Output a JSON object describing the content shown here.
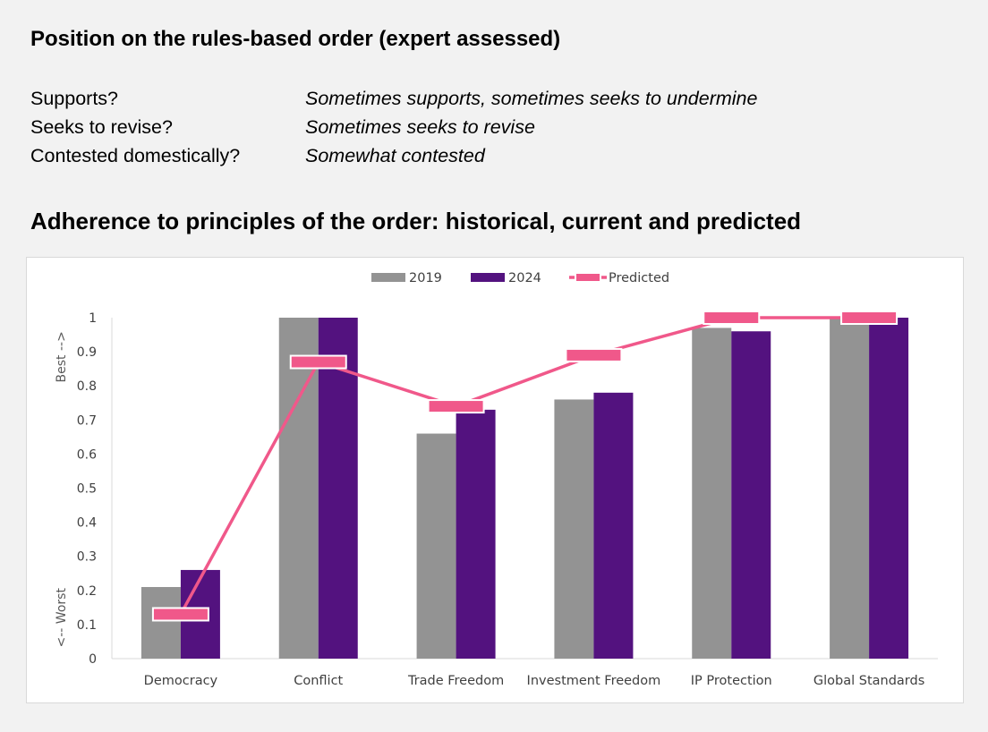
{
  "header": {
    "title": "Position on the rules-based order (expert assessed)",
    "rows": [
      {
        "label": "Supports?",
        "value": "Sometimes supports, sometimes seeks to undermine"
      },
      {
        "label": "Seeks to revise?",
        "value": "Sometimes seeks to revise"
      },
      {
        "label": "Contested domestically?",
        "value": "Somewhat contested"
      }
    ]
  },
  "chart_title": "Adherence to principles of the order: historical, current and predicted",
  "chart_data": {
    "type": "bar",
    "categories": [
      "Democracy",
      "Conflict",
      "Trade Freedom",
      "Investment Freedom",
      "IP Protection",
      "Global Standards"
    ],
    "series": [
      {
        "name": "2019",
        "type": "bar",
        "color": "#939393",
        "values": [
          0.21,
          1.0,
          0.66,
          0.76,
          0.97,
          1.0
        ]
      },
      {
        "name": "2024",
        "type": "bar",
        "color": "#53127f",
        "values": [
          0.26,
          1.0,
          0.73,
          0.78,
          0.96,
          1.0
        ]
      },
      {
        "name": "Predicted",
        "type": "line",
        "color": "#f0588a",
        "values": [
          0.13,
          0.87,
          0.74,
          0.89,
          1.0,
          1.0
        ]
      }
    ],
    "ylim": [
      0,
      1
    ],
    "yticks": [
      "0",
      "0.1",
      "0.2",
      "0.3",
      "0.4",
      "0.5",
      "0.6",
      "0.7",
      "0.8",
      "0.9",
      "1"
    ],
    "ylabel_top": "Best -->",
    "ylabel_bottom": "<-- Worst",
    "legend_position": "top-center",
    "grid": false
  }
}
